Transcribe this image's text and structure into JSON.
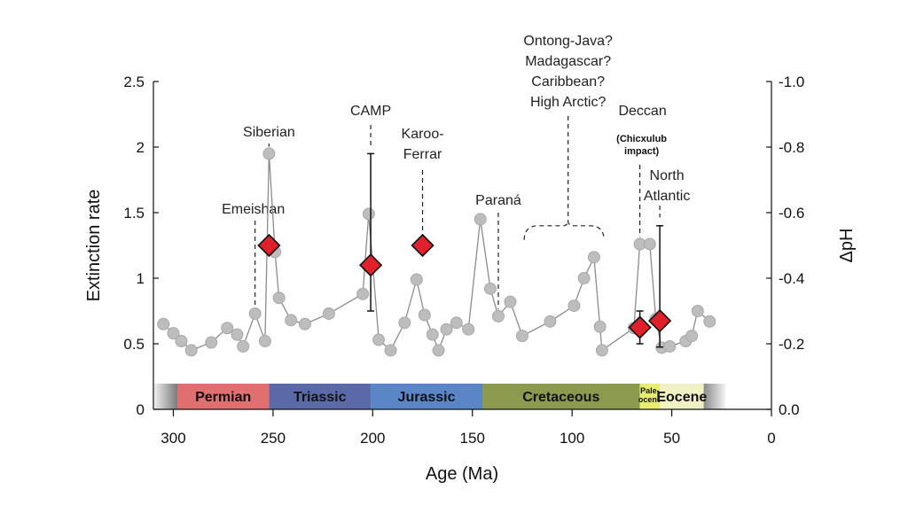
{
  "chart_data": {
    "type": "scatter",
    "xlabel": "Age (Ma)",
    "ylabel": "Extinction rate",
    "y2label": "ΔpH",
    "xlim": [
      310,
      0
    ],
    "ylim": [
      0,
      2.5
    ],
    "y2lim": [
      0.0,
      -1.0
    ],
    "x_ticks": [
      300,
      250,
      200,
      150,
      100,
      50,
      0
    ],
    "y_ticks": [
      0,
      0.5,
      1,
      1.5,
      2,
      2.5
    ],
    "y_tick_labels": [
      "0",
      "0.5",
      "1",
      "1.5",
      "2",
      "2.5"
    ],
    "y2_ticks": [
      0.0,
      -0.2,
      -0.4,
      -0.6,
      -0.8,
      -1.0
    ],
    "y2_tick_labels": [
      "0.0",
      "-0.2",
      "-0.4",
      "-0.6",
      "-0.8",
      "-1.0"
    ],
    "colors": {
      "extinction": "#bdbdbd",
      "line": "#8c8c8c",
      "ph": "#e0202a",
      "y2label": "#d0202a"
    },
    "series": [
      {
        "name": "Extinction rate",
        "axis": "left",
        "points": [
          [
            305,
            0.65
          ],
          [
            300,
            0.58
          ],
          [
            296,
            0.52
          ],
          [
            291,
            0.45
          ],
          [
            281,
            0.51
          ],
          [
            273,
            0.62
          ],
          [
            268,
            0.57
          ],
          [
            265,
            0.48
          ],
          [
            259,
            0.73
          ],
          [
            254,
            0.52
          ],
          [
            252,
            1.95
          ],
          [
            249,
            1.2
          ],
          [
            247,
            0.85
          ],
          [
            241,
            0.68
          ],
          [
            234,
            0.65
          ],
          [
            222,
            0.73
          ],
          [
            205,
            0.88
          ],
          [
            202,
            1.49
          ],
          [
            197,
            0.53
          ],
          [
            191,
            0.45
          ],
          [
            184,
            0.66
          ],
          [
            178,
            0.99
          ],
          [
            174,
            0.72
          ],
          [
            170,
            0.57
          ],
          [
            167,
            0.45
          ],
          [
            163,
            0.61
          ],
          [
            158,
            0.66
          ],
          [
            152,
            0.61
          ],
          [
            146,
            1.45
          ],
          [
            141,
            0.92
          ],
          [
            137,
            0.71
          ],
          [
            131,
            0.82
          ],
          [
            125,
            0.56
          ],
          [
            111,
            0.67
          ],
          [
            99,
            0.79
          ],
          [
            94,
            1.0
          ],
          [
            89,
            1.16
          ],
          [
            86,
            0.63
          ],
          [
            85,
            0.45
          ],
          [
            69,
            0.62
          ],
          [
            66,
            1.26
          ],
          [
            61,
            1.26
          ],
          [
            58,
            0.69
          ],
          [
            55,
            0.47
          ],
          [
            51,
            0.48
          ],
          [
            43,
            0.52
          ],
          [
            40,
            0.56
          ],
          [
            37,
            0.75
          ],
          [
            31,
            0.67
          ]
        ]
      },
      {
        "name": "ΔpH",
        "axis": "right",
        "points": [
          {
            "x": 252,
            "y": -0.5
          },
          {
            "x": 201,
            "y": -0.44,
            "err_low": -0.3,
            "err_high": -0.78
          },
          {
            "x": 175,
            "y": -0.5
          },
          {
            "x": 66,
            "y": -0.25,
            "err_low": -0.2,
            "err_high": -0.3
          },
          {
            "x": 56,
            "y": -0.27,
            "err_low": -0.19,
            "err_high": -0.56
          }
        ]
      }
    ],
    "periods": [
      {
        "name": "Permian",
        "start": 298,
        "end": 252,
        "color": "#e07070"
      },
      {
        "name": "Triassic",
        "start": 252,
        "end": 201,
        "color": "#5a6aa8"
      },
      {
        "name": "Jurassic",
        "start": 201,
        "end": 145,
        "color": "#5a86c8"
      },
      {
        "name": "Cretaceous",
        "start": 145,
        "end": 66,
        "color": "#8c9a50"
      },
      {
        "name": "Pale-ocene",
        "start": 66,
        "end": 56,
        "color": "#e8ec70"
      },
      {
        "name": "Eocene",
        "start": 56,
        "end": 34,
        "color": "#f0f2c4"
      }
    ],
    "annotations": [
      {
        "lines": [
          "Siberian"
        ],
        "x": 252,
        "anchor_y": 1.95
      },
      {
        "lines": [
          "Emeishan"
        ],
        "x": 259,
        "anchor_y": 0.73
      },
      {
        "lines": [
          "CAMP"
        ],
        "x": 201,
        "anchor_y": 1.95
      },
      {
        "lines": [
          "Karoo-",
          "Ferrar"
        ],
        "x": 175,
        "anchor_y": 1.25
      },
      {
        "lines": [
          "Paraná"
        ],
        "x": 137,
        "anchor_y": 0.71
      },
      {
        "lines": [
          "Ontong-Java?",
          "Madagascar?",
          "Caribbean?",
          "High Arctic?"
        ],
        "x": 102,
        "anchor_y": 1.4
      },
      {
        "lines": [
          "Deccan"
        ],
        "x": 66,
        "anchor_y": 1.26
      },
      {
        "lines": [
          "(Chicxulub",
          "impact)"
        ],
        "x": 66,
        "small": true
      },
      {
        "lines": [
          "North",
          "Atlantic"
        ],
        "x": 56,
        "anchor_y": 1.41
      }
    ]
  }
}
